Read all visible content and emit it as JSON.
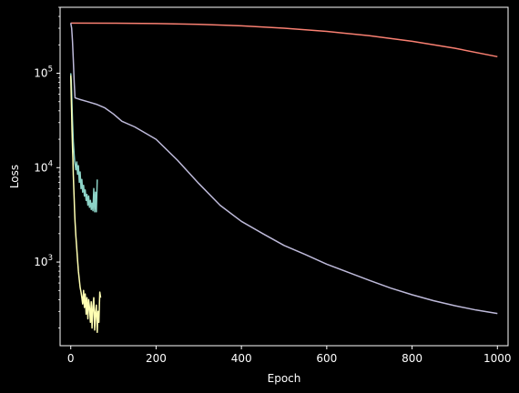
{
  "chart_data": {
    "type": "line",
    "title": "",
    "xlabel": "Epoch",
    "ylabel": "Loss",
    "xlim": [
      -25,
      1025
    ],
    "ylim": [
      130,
      500000
    ],
    "yscale": "log",
    "grid": false,
    "background": "#000000",
    "foreground": "#ffffff",
    "xticks": [
      {
        "value": 0,
        "label": "0"
      },
      {
        "value": 200,
        "label": "200"
      },
      {
        "value": 400,
        "label": "400"
      },
      {
        "value": 600,
        "label": "600"
      },
      {
        "value": 800,
        "label": "800"
      },
      {
        "value": 1000,
        "label": "1000"
      }
    ],
    "yticks": [
      {
        "value": 1000,
        "base": "10",
        "exp": "3"
      },
      {
        "value": 10000,
        "base": "10",
        "exp": "4"
      },
      {
        "value": 100000,
        "base": "10",
        "exp": "5"
      }
    ],
    "series": [
      {
        "color": "#fa8072",
        "x": [
          0,
          100,
          200,
          300,
          400,
          500,
          600,
          700,
          800,
          900,
          1000
        ],
        "y": [
          340000,
          339000,
          336000,
          330000,
          318000,
          300000,
          278000,
          250000,
          218000,
          184000,
          150000
        ]
      },
      {
        "color": "#bebada",
        "x": [
          0,
          2,
          4,
          6,
          8,
          10,
          15,
          20,
          40,
          60,
          80,
          100,
          120,
          150,
          200,
          250,
          300,
          350,
          400,
          450,
          500,
          550,
          600,
          650,
          700,
          750,
          800,
          850,
          900,
          950,
          1000
        ],
        "y": [
          340000,
          300000,
          220000,
          140000,
          80000,
          55000,
          54000,
          53000,
          50000,
          47000,
          43000,
          37000,
          31000,
          27000,
          20000,
          12000,
          6800,
          4000,
          2700,
          2000,
          1500,
          1200,
          950,
          780,
          640,
          530,
          450,
          390,
          345,
          310,
          285
        ]
      },
      {
        "color": "#8dd3c7",
        "x": [
          0,
          1,
          2,
          3,
          4,
          5,
          6,
          7,
          8,
          9,
          10,
          12,
          14,
          16,
          18,
          20,
          22,
          24,
          26,
          28,
          30,
          32,
          34,
          36,
          38,
          40,
          42,
          44,
          46,
          48,
          50,
          52,
          54,
          56,
          58,
          60,
          62
        ],
        "y": [
          100000,
          85000,
          62000,
          45000,
          32000,
          24000,
          19000,
          16000,
          13500,
          12000,
          11000,
          9500,
          11500,
          8500,
          10500,
          7000,
          9000,
          6000,
          7500,
          5500,
          6500,
          5000,
          5800,
          4500,
          5200,
          4000,
          5000,
          3800,
          4500,
          3600,
          4200,
          3500,
          6000,
          3400,
          5500,
          3400,
          7500
        ]
      },
      {
        "color": "#ffffb3",
        "x": [
          0,
          1,
          2,
          3,
          4,
          5,
          6,
          7,
          8,
          9,
          10,
          12,
          14,
          16,
          18,
          20,
          22,
          24,
          26,
          28,
          30,
          32,
          34,
          36,
          38,
          40,
          42,
          44,
          46,
          48,
          50,
          52,
          54,
          56,
          58,
          60,
          62,
          64,
          66,
          68,
          70
        ],
        "y": [
          95000,
          60000,
          38000,
          25000,
          17000,
          12000,
          8500,
          6200,
          4600,
          3500,
          2700,
          1900,
          1400,
          1050,
          800,
          650,
          540,
          480,
          420,
          360,
          500,
          330,
          460,
          280,
          420,
          250,
          400,
          330,
          230,
          380,
          200,
          340,
          420,
          190,
          290,
          350,
          180,
          300,
          230,
          480,
          420
        ]
      }
    ]
  }
}
